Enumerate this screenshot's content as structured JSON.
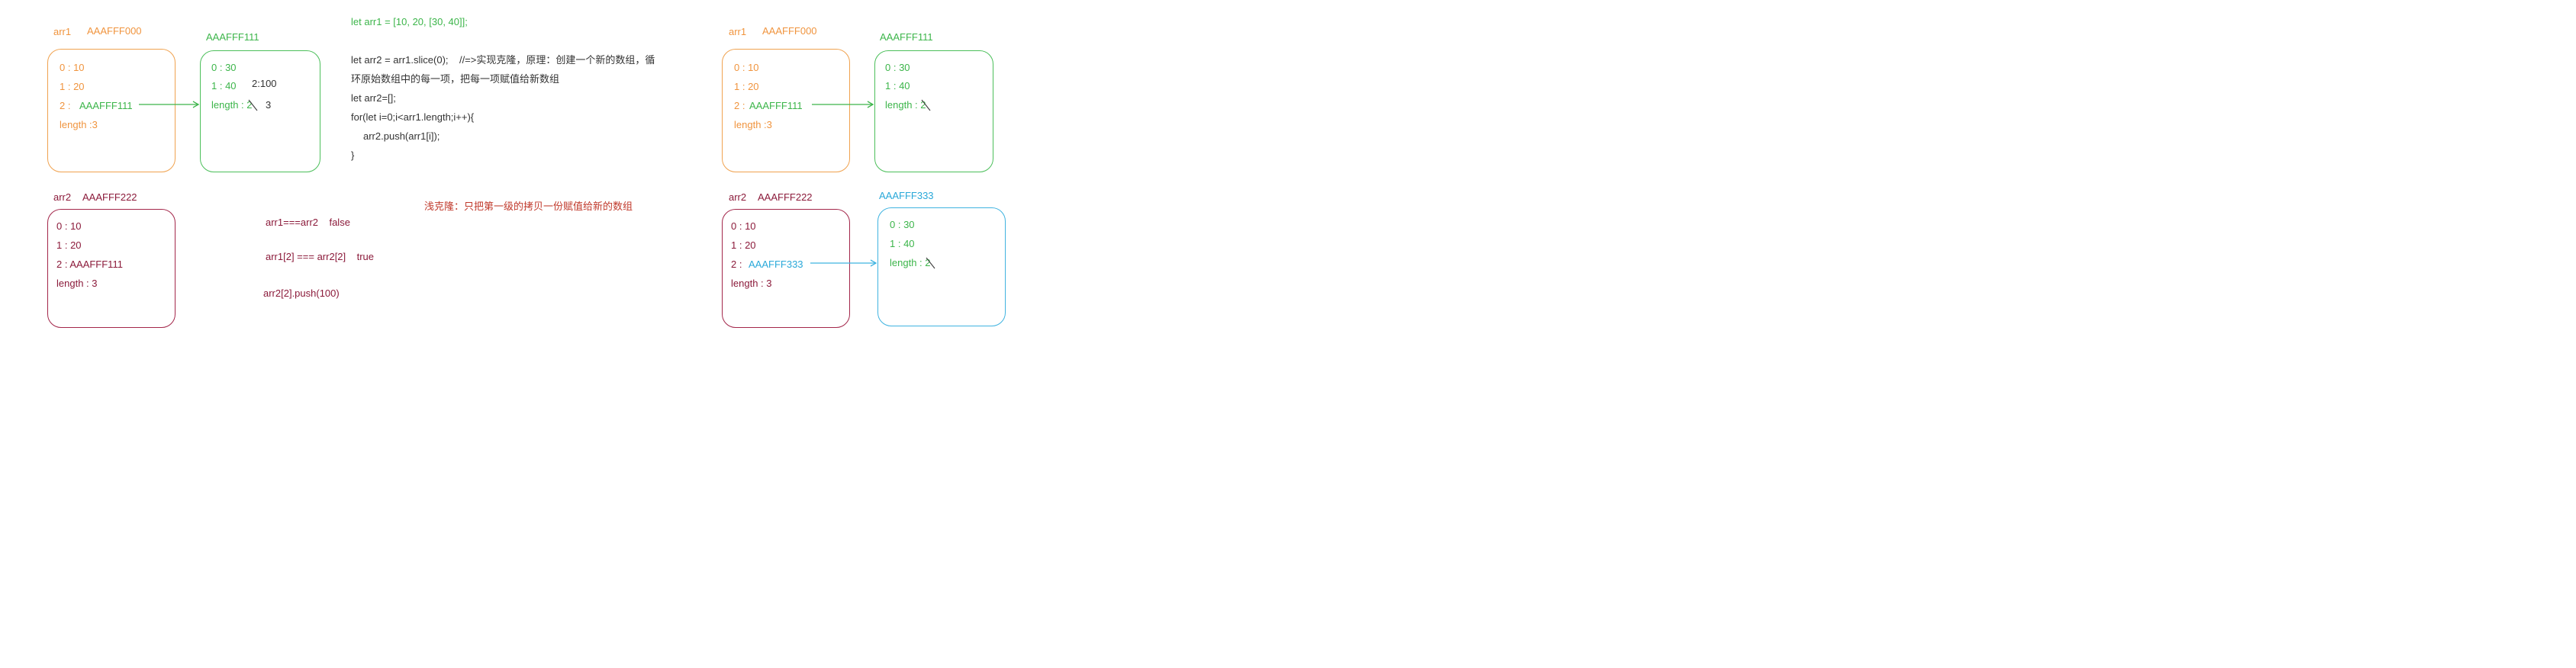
{
  "left": {
    "arr1_label": "arr1",
    "arr1_addr": "AAAFFF000",
    "arr1_items": [
      "0 : 10",
      "1 : 20",
      "2 :"
    ],
    "arr1_item2_ref": "AAAFFF111",
    "arr1_length": "length :3",
    "inner_addr": "AAAFFF111",
    "inner_items": [
      "0 : 30",
      "1 : 40"
    ],
    "inner_length": "length : 2",
    "inner_length_new": "3",
    "inner_extra": "2:100",
    "arr2_label": "arr2",
    "arr2_addr": "AAAFFF222",
    "arr2_items": [
      "0 : 10",
      "1 : 20",
      "2 : AAAFFF111",
      "length : 3"
    ],
    "compare1": "arr1===arr2    false",
    "compare2": "arr1[2] === arr2[2]    true",
    "compare3": "arr2[2].push(100)"
  },
  "code": {
    "line1": "let arr1 = [10, 20, [30, 40]];",
    "line2": "let arr2 = arr1.slice(0);    //=>实现克隆，原理：创建一个新的数组，循",
    "line3": "环原始数组中的每一项，把每一项赋值给新数组",
    "line4": "let arr2=[];",
    "line5": "for(let i=0;i<arr1.length;i++){",
    "line6": "arr2.push(arr1[i]);",
    "line7": "}",
    "note": "浅克隆：只把第一级的拷贝一份赋值给新的数组"
  },
  "right": {
    "arr1_label": "arr1",
    "arr1_addr": "AAAFFF000",
    "arr1_items": [
      "0 : 10",
      "1 : 20",
      "2 :"
    ],
    "arr1_item2_ref": "AAAFFF111",
    "arr1_length": "length :3",
    "inner1_addr": "AAAFFF111",
    "inner1_items": [
      "0 : 30",
      "1 : 40",
      "length : 2"
    ],
    "arr2_label": "arr2",
    "arr2_addr": "AAAFFF222",
    "arr2_items": [
      "0 : 10",
      "1 : 20",
      "2 :"
    ],
    "arr2_item2_ref": "AAAFFF333",
    "arr2_length": "length : 3",
    "inner2_addr": "AAAFFF333",
    "inner2_items": [
      "0 : 30",
      "1 : 40",
      "length : 2"
    ]
  },
  "colors": {
    "orange": "#f0943e",
    "green": "#3cb54a",
    "maroon": "#8b1a3a",
    "cyan": "#29a8d9"
  }
}
